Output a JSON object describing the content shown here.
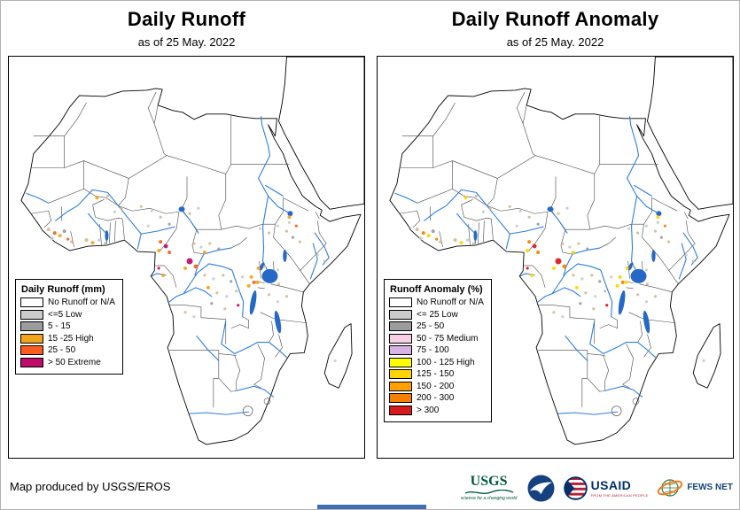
{
  "panels": {
    "left": {
      "title": "Daily Runoff",
      "subtitle": "as of 25 May. 2022",
      "legend": {
        "title": "Daily Runoff (mm)",
        "items": [
          {
            "label": "No Runoff or N/A",
            "color": "#ffffff"
          },
          {
            "label": "<=5 Low",
            "color": "#cbcbcb"
          },
          {
            "label": "5 - 15",
            "color": "#9c9c9c"
          },
          {
            "label": "15 -25 High",
            "color": "#f2a51a"
          },
          {
            "label": "25 - 50",
            "color": "#fa5d1e"
          },
          {
            "label": "> 50 Extreme",
            "color": "#bf0a6a"
          }
        ]
      }
    },
    "right": {
      "title": "Daily Runoff Anomaly",
      "subtitle": "as of 25 May. 2022",
      "legend": {
        "title": "Runoff Anomaly (%)",
        "items": [
          {
            "label": "No Runoff or N/A",
            "color": "#ffffff"
          },
          {
            "label": "<= 25 Low",
            "color": "#cbcbcb"
          },
          {
            "label": "25 - 50",
            "color": "#9c9c9c"
          },
          {
            "label": "50 - 75 Medium",
            "color": "#f8d0e6"
          },
          {
            "label": "75 - 100",
            "color": "#d9b3e6"
          },
          {
            "label": "100 - 125 High",
            "color": "#ffff00"
          },
          {
            "label": "125 - 150",
            "color": "#ffd400"
          },
          {
            "label": "150 - 200",
            "color": "#ffa000"
          },
          {
            "label": "200 - 300",
            "color": "#f57f00"
          },
          {
            "label": "> 300",
            "color": "#d7191c"
          }
        ]
      }
    }
  },
  "footer": {
    "text": "Map produced by USGS/EROS"
  },
  "logos": {
    "usgs": {
      "name": "USGS",
      "tagline": "science for a changing world",
      "color": "#00563f"
    },
    "noaa": {
      "name": "NOAA",
      "color": "#15427e"
    },
    "usaid": {
      "name": "USAID",
      "tagline": "FROM THE AMERICAN PEOPLE",
      "color": "#002f6c"
    },
    "fewsnet": {
      "name": "FEWS NET",
      "color": "#17457c",
      "accent": "#f47b20"
    }
  },
  "map": {
    "coast_color": "#000000",
    "border_color": "#454545",
    "river_color": "#2f7ed8",
    "lake_color": "#2668c5"
  }
}
